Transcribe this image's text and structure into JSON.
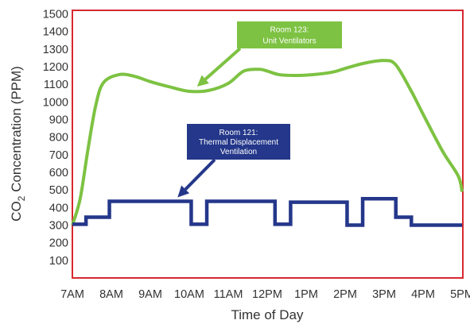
{
  "chart_data": {
    "type": "line",
    "title": "",
    "xlabel": "Time of Day",
    "ylabel_main": "CO",
    "ylabel_sub": "2",
    "ylabel_rest": " Concentration (PPM)",
    "ylim": [
      0,
      1520
    ],
    "yticks": [
      100,
      200,
      300,
      400,
      500,
      600,
      700,
      800,
      900,
      1000,
      1100,
      1200,
      1300,
      1400,
      1500
    ],
    "xlim": [
      7,
      17
    ],
    "xticks": [
      {
        "x": 7,
        "label": "7AM"
      },
      {
        "x": 8,
        "label": "8AM"
      },
      {
        "x": 9,
        "label": "9AM"
      },
      {
        "x": 10,
        "label": "10AM"
      },
      {
        "x": 11,
        "label": "11AM"
      },
      {
        "x": 12,
        "label": "12PM"
      },
      {
        "x": 13,
        "label": "1PM"
      },
      {
        "x": 14,
        "label": "2PM"
      },
      {
        "x": 15,
        "label": "3PM"
      },
      {
        "x": 16,
        "label": "4PM"
      },
      {
        "x": 17,
        "label": "5PM"
      }
    ],
    "grid": false,
    "series": [
      {
        "name": "Room 123: Unit Ventilators",
        "color": "#7dc242",
        "style": "smooth",
        "x": [
          7.0,
          7.2,
          7.4,
          7.6,
          7.8,
          8.2,
          8.6,
          9.0,
          9.5,
          10.0,
          10.5,
          11.0,
          11.4,
          11.8,
          12.0,
          12.3,
          12.7,
          13.2,
          13.7,
          14.0,
          14.5,
          15.0,
          15.3,
          15.7,
          16.0,
          16.5,
          16.9,
          17.0
        ],
        "y": [
          300,
          450,
          730,
          980,
          1110,
          1155,
          1145,
          1115,
          1085,
          1060,
          1065,
          1105,
          1175,
          1185,
          1175,
          1155,
          1150,
          1155,
          1170,
          1190,
          1220,
          1235,
          1210,
          1060,
          930,
          720,
          580,
          490
        ]
      },
      {
        "name": "Room 121: Thermal Displacement Ventilation",
        "color": "#24378a",
        "style": "step",
        "x": [
          7.0,
          7.35,
          7.35,
          7.95,
          7.95,
          10.05,
          10.05,
          10.45,
          10.45,
          12.2,
          12.2,
          12.6,
          12.6,
          14.05,
          14.05,
          14.45,
          14.45,
          15.3,
          15.3,
          15.7,
          15.7,
          17.0
        ],
        "y": [
          305,
          305,
          345,
          345,
          435,
          435,
          305,
          305,
          435,
          435,
          305,
          305,
          430,
          430,
          300,
          300,
          450,
          450,
          345,
          345,
          300,
          300
        ]
      }
    ],
    "annotations": [
      {
        "lines": [
          "Room 123:",
          "Unit Ventilators"
        ],
        "color": "#7dc242",
        "series": 0,
        "target_x": 10.2,
        "target_y": 1060
      },
      {
        "lines": [
          "Room 121:",
          "Thermal Displacement",
          "Ventilation"
        ],
        "color": "#24378a",
        "series": 1,
        "target_x": 9.7,
        "target_y": 440
      }
    ],
    "frame_color": "#d7282f"
  }
}
